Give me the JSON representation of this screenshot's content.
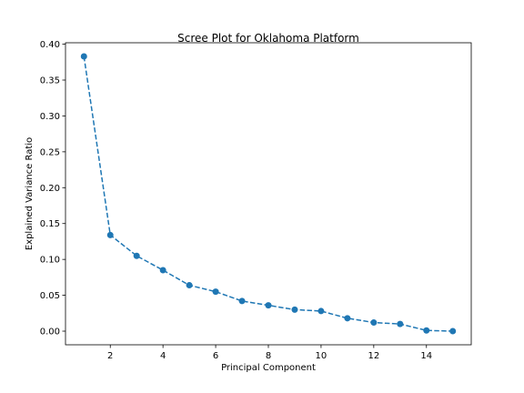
{
  "chart_data": {
    "type": "line",
    "title": "Scree Plot for Oklahoma Platform",
    "xlabel": "Principal Component",
    "ylabel": "Explained Variance Ratio",
    "x": [
      1,
      2,
      3,
      4,
      5,
      6,
      7,
      8,
      9,
      10,
      11,
      12,
      13,
      14,
      15
    ],
    "series": [
      {
        "values": [
          0.383,
          0.134,
          0.105,
          0.085,
          0.064,
          0.055,
          0.042,
          0.036,
          0.03,
          0.028,
          0.018,
          0.012,
          0.01,
          0.001,
          0.0
        ],
        "color": "#1f77b4",
        "line_style": "dashed",
        "marker": "circle"
      }
    ],
    "xlim": [
      0.3,
      15.7
    ],
    "ylim": [
      -0.019,
      0.402
    ],
    "xticks": [
      2,
      4,
      6,
      8,
      10,
      12,
      14
    ],
    "xtick_labels": [
      "2",
      "4",
      "6",
      "8",
      "10",
      "12",
      "14"
    ],
    "yticks": [
      0.0,
      0.05,
      0.1,
      0.15,
      0.2,
      0.25,
      0.3,
      0.35,
      0.4
    ],
    "ytick_labels": [
      "0.00",
      "0.05",
      "0.10",
      "0.15",
      "0.20",
      "0.25",
      "0.30",
      "0.35",
      "0.40"
    ],
    "grid": false,
    "legend": false
  }
}
